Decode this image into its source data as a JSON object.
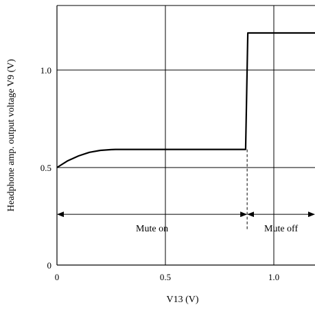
{
  "chart_data": {
    "type": "line",
    "xlabel": "V13  (V)",
    "ylabel": "Headphone amp. output voltage  V9  (V)",
    "xlim": [
      0,
      1.2
    ],
    "ylim": [
      0,
      1.35
    ],
    "x_ticks": [
      {
        "value": 0,
        "label": "0"
      },
      {
        "value": 0.5,
        "label": "0.5"
      },
      {
        "value": 1.0,
        "label": "1.0"
      }
    ],
    "y_ticks": [
      {
        "value": 0,
        "label": "0"
      },
      {
        "value": 0.5,
        "label": "0.5"
      },
      {
        "value": 1.0,
        "label": "1.0"
      }
    ],
    "grid": true,
    "series": [
      {
        "x": [
          0,
          0.05,
          0.1,
          0.15,
          0.2,
          0.25,
          0.27,
          0.87,
          0.88,
          1.2
        ],
        "y": [
          0.5,
          0.535,
          0.56,
          0.578,
          0.588,
          0.592,
          0.593,
          0.593,
          1.19,
          1.19
        ]
      }
    ],
    "threshold_x": 0.877,
    "annotations": [
      {
        "text": "Mute on",
        "x_from": 0,
        "x_to": 0.877,
        "y": 0.26
      },
      {
        "text": "Mute off",
        "x_from": 0.877,
        "x_to": 1.2,
        "y": 0.26
      }
    ]
  }
}
